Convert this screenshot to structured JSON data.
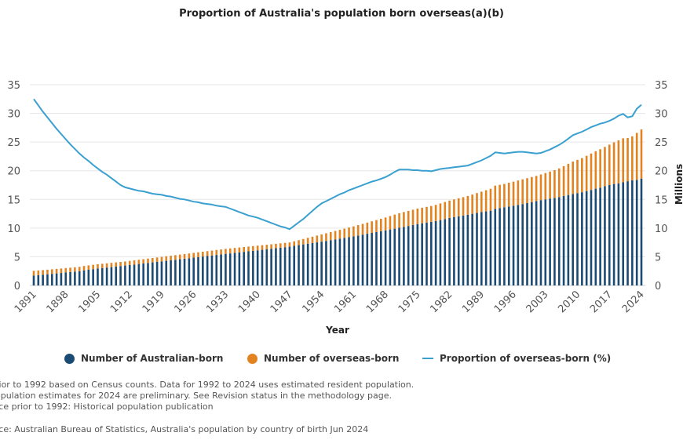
{
  "colors": {
    "australian_born": "#1b4a72",
    "overseas_born": "#e2831f",
    "proportion": "#3aa0d0",
    "grid": "#e6e6e6"
  },
  "chart_data": {
    "type": "bar+line",
    "title": "Proportion of Australia's population born overseas(a)(b)",
    "xlabel": "Year",
    "ylabel_right": "Millions",
    "ylim": [
      0,
      35
    ],
    "yticks": [
      0,
      5,
      10,
      15,
      20,
      25,
      30,
      35
    ],
    "xtick_labels": [
      "1891",
      "1898",
      "1905",
      "1912",
      "1919",
      "1926",
      "1933",
      "1940",
      "1947",
      "1954",
      "1961",
      "1968",
      "1975",
      "1982",
      "1989",
      "1996",
      "2003",
      "2010",
      "2017",
      "2024"
    ],
    "grid": true,
    "legend_position": "bottom",
    "x": [
      1891,
      1892,
      1893,
      1894,
      1895,
      1896,
      1897,
      1898,
      1899,
      1900,
      1901,
      1902,
      1903,
      1904,
      1905,
      1906,
      1907,
      1908,
      1909,
      1910,
      1911,
      1912,
      1913,
      1914,
      1915,
      1916,
      1917,
      1918,
      1919,
      1920,
      1921,
      1922,
      1923,
      1924,
      1925,
      1926,
      1927,
      1928,
      1929,
      1930,
      1931,
      1932,
      1933,
      1934,
      1935,
      1936,
      1937,
      1938,
      1939,
      1940,
      1941,
      1942,
      1943,
      1944,
      1945,
      1946,
      1947,
      1948,
      1949,
      1950,
      1951,
      1952,
      1953,
      1954,
      1955,
      1956,
      1957,
      1958,
      1959,
      1960,
      1961,
      1962,
      1963,
      1964,
      1965,
      1966,
      1967,
      1968,
      1969,
      1970,
      1971,
      1972,
      1973,
      1974,
      1975,
      1976,
      1977,
      1978,
      1979,
      1980,
      1981,
      1982,
      1983,
      1984,
      1985,
      1986,
      1987,
      1988,
      1989,
      1990,
      1991,
      1992,
      1993,
      1994,
      1995,
      1996,
      1997,
      1998,
      1999,
      2000,
      2001,
      2002,
      2003,
      2004,
      2005,
      2006,
      2007,
      2008,
      2009,
      2010,
      2011,
      2012,
      2013,
      2014,
      2015,
      2016,
      2017,
      2018,
      2019,
      2020,
      2021,
      2022,
      2023,
      2024
    ],
    "series": [
      {
        "name": "Number of Australian-born",
        "type": "bar",
        "stack": "pop",
        "values": [
          1.72,
          1.8,
          1.87,
          1.94,
          2.02,
          2.1,
          2.18,
          2.26,
          2.34,
          2.42,
          2.49,
          2.64,
          2.74,
          2.84,
          2.95,
          3.03,
          3.12,
          3.2,
          3.29,
          3.38,
          3.47,
          3.56,
          3.65,
          3.74,
          3.83,
          3.92,
          4.02,
          4.1,
          4.19,
          4.29,
          4.38,
          4.47,
          4.57,
          4.66,
          4.75,
          4.85,
          4.94,
          5.04,
          5.13,
          5.22,
          5.32,
          5.41,
          5.51,
          5.59,
          5.68,
          5.77,
          5.86,
          5.95,
          6.04,
          6.12,
          6.21,
          6.3,
          6.4,
          6.49,
          6.58,
          6.67,
          6.76,
          6.9,
          7.03,
          7.16,
          7.28,
          7.39,
          7.51,
          7.63,
          7.76,
          7.9,
          8.03,
          8.16,
          8.3,
          8.42,
          8.56,
          8.71,
          8.86,
          9.01,
          9.16,
          9.31,
          9.46,
          9.61,
          9.76,
          9.9,
          10.05,
          10.21,
          10.37,
          10.55,
          10.71,
          10.84,
          10.96,
          11.09,
          11.23,
          11.4,
          11.58,
          11.77,
          11.91,
          12.05,
          12.2,
          12.34,
          12.49,
          12.64,
          12.79,
          12.91,
          13.04,
          13.36,
          13.5,
          13.63,
          13.77,
          13.9,
          14.04,
          14.19,
          14.36,
          14.53,
          14.71,
          14.88,
          15.01,
          15.15,
          15.26,
          15.4,
          15.6,
          15.77,
          15.94,
          16.1,
          16.25,
          16.45,
          16.65,
          16.87,
          17.05,
          17.29,
          17.5,
          17.69,
          17.81,
          17.98,
          18.17,
          18.33,
          18.41,
          18.63
        ]
      },
      {
        "name": "Number of overseas-born",
        "type": "bar",
        "stack": "pop",
        "values": [
          0.83,
          0.82,
          0.81,
          0.81,
          0.8,
          0.79,
          0.78,
          0.77,
          0.76,
          0.75,
          0.75,
          0.76,
          0.76,
          0.76,
          0.75,
          0.75,
          0.74,
          0.74,
          0.73,
          0.72,
          0.71,
          0.72,
          0.73,
          0.74,
          0.75,
          0.76,
          0.76,
          0.78,
          0.79,
          0.79,
          0.8,
          0.81,
          0.81,
          0.82,
          0.83,
          0.83,
          0.84,
          0.84,
          0.85,
          0.86,
          0.86,
          0.87,
          0.87,
          0.87,
          0.86,
          0.85,
          0.84,
          0.83,
          0.82,
          0.82,
          0.81,
          0.8,
          0.78,
          0.77,
          0.76,
          0.75,
          0.74,
          0.8,
          0.87,
          0.94,
          1.02,
          1.11,
          1.19,
          1.27,
          1.34,
          1.4,
          1.47,
          1.54,
          1.6,
          1.68,
          1.74,
          1.81,
          1.88,
          1.95,
          2.02,
          2.09,
          2.16,
          2.24,
          2.34,
          2.45,
          2.55,
          2.59,
          2.63,
          2.65,
          2.69,
          2.71,
          2.74,
          2.76,
          2.82,
          2.9,
          2.97,
          3.03,
          3.09,
          3.15,
          3.2,
          3.26,
          3.36,
          3.46,
          3.56,
          3.69,
          3.81,
          4.04,
          4.05,
          4.07,
          4.13,
          4.2,
          4.26,
          4.31,
          4.34,
          4.37,
          4.39,
          4.47,
          4.59,
          4.7,
          4.84,
          5.0,
          5.2,
          5.43,
          5.66,
          5.8,
          5.95,
          6.15,
          6.35,
          6.53,
          6.7,
          6.86,
          7.05,
          7.26,
          7.49,
          7.67,
          7.53,
          7.67,
          8.19,
          8.57
        ]
      },
      {
        "name": "Proportion of overseas-born (%)",
        "type": "line",
        "values": [
          32.5,
          31.4,
          30.3,
          29.3,
          28.3,
          27.3,
          26.4,
          25.5,
          24.6,
          23.8,
          23.0,
          22.3,
          21.7,
          21.0,
          20.4,
          19.8,
          19.3,
          18.7,
          18.1,
          17.5,
          17.1,
          16.9,
          16.7,
          16.5,
          16.4,
          16.2,
          16.0,
          15.9,
          15.8,
          15.6,
          15.5,
          15.3,
          15.1,
          15.0,
          14.8,
          14.6,
          14.5,
          14.3,
          14.2,
          14.1,
          13.9,
          13.8,
          13.7,
          13.4,
          13.1,
          12.8,
          12.5,
          12.2,
          12.0,
          11.8,
          11.5,
          11.2,
          10.9,
          10.6,
          10.3,
          10.1,
          9.8,
          10.4,
          11.0,
          11.6,
          12.3,
          13.0,
          13.7,
          14.3,
          14.7,
          15.1,
          15.5,
          15.9,
          16.2,
          16.6,
          16.9,
          17.2,
          17.5,
          17.8,
          18.1,
          18.3,
          18.6,
          18.9,
          19.3,
          19.8,
          20.2,
          20.2,
          20.2,
          20.1,
          20.1,
          20.0,
          20.0,
          19.9,
          20.1,
          20.3,
          20.4,
          20.5,
          20.6,
          20.7,
          20.8,
          20.9,
          21.2,
          21.5,
          21.8,
          22.2,
          22.6,
          23.2,
          23.1,
          23.0,
          23.1,
          23.2,
          23.3,
          23.3,
          23.2,
          23.1,
          23.0,
          23.1,
          23.4,
          23.7,
          24.1,
          24.5,
          25.0,
          25.6,
          26.2,
          26.5,
          26.8,
          27.2,
          27.6,
          27.9,
          28.2,
          28.4,
          28.7,
          29.1,
          29.6,
          29.9,
          29.3,
          29.5,
          30.8,
          31.5
        ]
      }
    ]
  },
  "notes": {
    "line1": "rior to 1992 based on Census counts. Data for 1992 to 2024 uses estimated resident population.",
    "line2": "opulation estimates for 2024 are preliminary. See Revision status in the methodology page.",
    "line3": "rce prior to 1992: Historical population publication",
    "source": "rce: Australian Bureau of Statistics, Australia's population by country of birth Jun 2024"
  }
}
